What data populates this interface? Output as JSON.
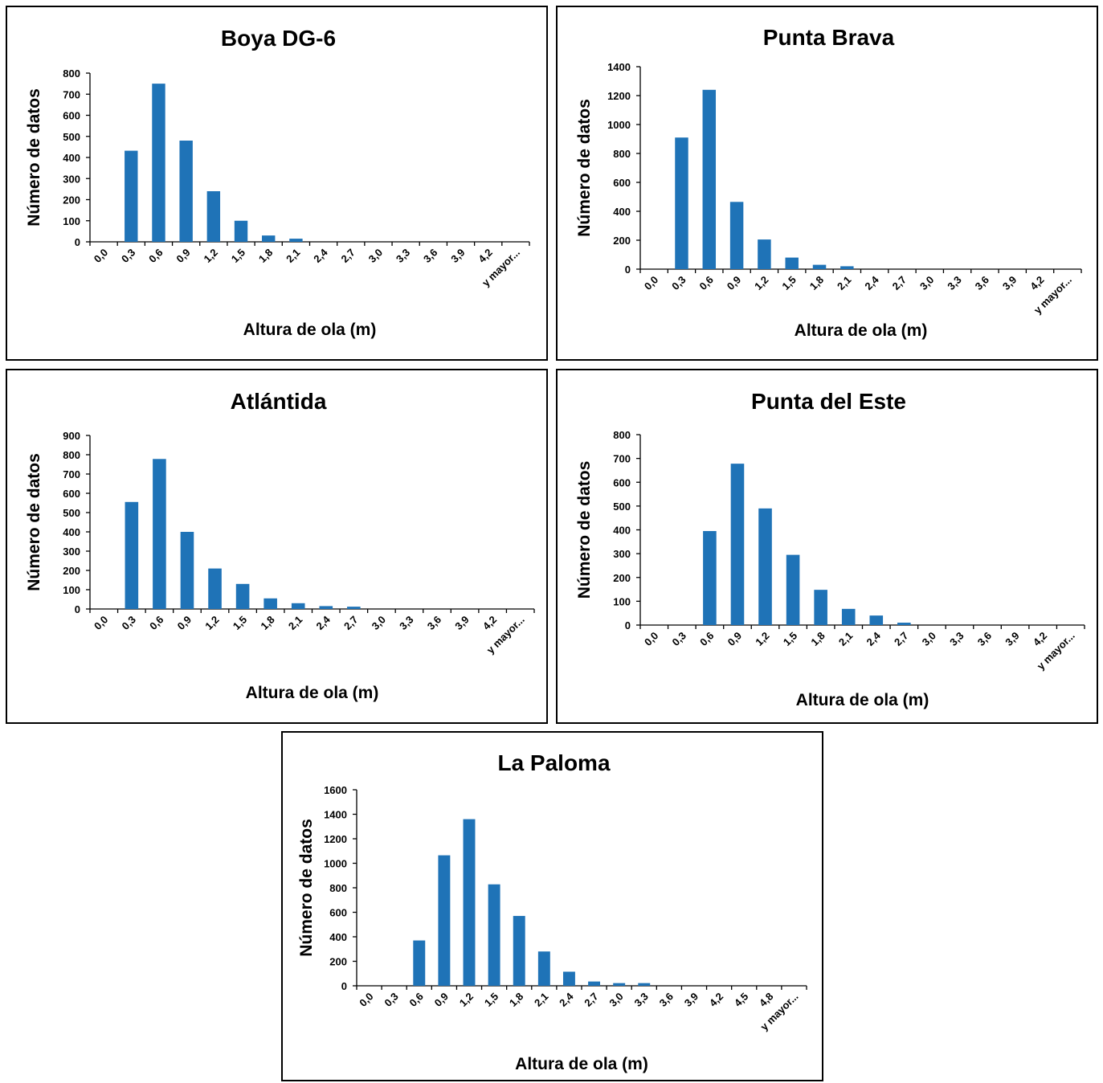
{
  "chart_data": [
    {
      "type": "bar",
      "title": "Boya DG-6",
      "xlabel": "Altura de ola (m)",
      "ylabel": "Número de datos",
      "categories": [
        "0,0",
        "0,3",
        "0,6",
        "0,9",
        "1,2",
        "1,5",
        "1,8",
        "2,1",
        "2,4",
        "2,7",
        "3,0",
        "3,3",
        "3,6",
        "3,9",
        "4,2",
        "y mayor..."
      ],
      "values": [
        0,
        432,
        750,
        480,
        240,
        100,
        30,
        15,
        0,
        0,
        0,
        0,
        0,
        0,
        0,
        0
      ],
      "ylim": [
        0,
        800
      ],
      "yticks": [
        0,
        100,
        200,
        300,
        400,
        500,
        600,
        700,
        800
      ],
      "color": "#1f73b7",
      "grid": false
    },
    {
      "type": "bar",
      "title": "Punta Brava",
      "xlabel": "Altura de ola (m)",
      "ylabel": "Número de datos",
      "categories": [
        "0,0",
        "0,3",
        "0,6",
        "0,9",
        "1,2",
        "1,5",
        "1,8",
        "2,1",
        "2,4",
        "2,7",
        "3,0",
        "3,3",
        "3,6",
        "3,9",
        "4,2",
        "y mayor..."
      ],
      "values": [
        0,
        910,
        1240,
        465,
        205,
        80,
        30,
        20,
        0,
        0,
        0,
        0,
        0,
        0,
        0,
        0
      ],
      "ylim": [
        0,
        1400
      ],
      "yticks": [
        0,
        200,
        400,
        600,
        800,
        1000,
        1200,
        1400
      ],
      "color": "#1f73b7",
      "grid": false
    },
    {
      "type": "bar",
      "title": "Atlántida",
      "xlabel": "Altura de ola (m)",
      "ylabel": "Número de datos",
      "categories": [
        "0,0",
        "0,3",
        "0,6",
        "0,9",
        "1,2",
        "1,5",
        "1,8",
        "2,1",
        "2,4",
        "2,7",
        "3,0",
        "3,3",
        "3,6",
        "3,9",
        "4,2",
        "y mayor..."
      ],
      "values": [
        0,
        555,
        778,
        400,
        210,
        130,
        55,
        30,
        15,
        12,
        0,
        0,
        0,
        0,
        0,
        0
      ],
      "ylim": [
        0,
        900
      ],
      "yticks": [
        0,
        100,
        200,
        300,
        400,
        500,
        600,
        700,
        800,
        900
      ],
      "color": "#1f73b7",
      "grid": false
    },
    {
      "type": "bar",
      "title": "Punta del Este",
      "xlabel": "Altura de ola (m)",
      "ylabel": "Número de datos",
      "categories": [
        "0,0",
        "0,3",
        "0,6",
        "0,9",
        "1,2",
        "1,5",
        "1,8",
        "2,1",
        "2,4",
        "2,7",
        "3,0",
        "3,3",
        "3,6",
        "3,9",
        "4,2",
        "y mayor..."
      ],
      "values": [
        0,
        0,
        395,
        678,
        490,
        295,
        148,
        68,
        40,
        10,
        0,
        0,
        0,
        0,
        0,
        0
      ],
      "ylim": [
        0,
        800
      ],
      "yticks": [
        0,
        100,
        200,
        300,
        400,
        500,
        600,
        700,
        800
      ],
      "color": "#1f73b7",
      "grid": false
    },
    {
      "type": "bar",
      "title": "La Paloma",
      "xlabel": "Altura de ola (m)",
      "ylabel": "Número de datos",
      "categories": [
        "0,0",
        "0,3",
        "0,6",
        "0,9",
        "1,2",
        "1,5",
        "1,8",
        "2,1",
        "2,4",
        "2,7",
        "3,0",
        "3,3",
        "3,6",
        "3,9",
        "4,2",
        "4,5",
        "4,8",
        "y mayor..."
      ],
      "values": [
        0,
        0,
        370,
        1065,
        1360,
        828,
        570,
        280,
        115,
        35,
        22,
        22,
        0,
        0,
        0,
        0,
        0,
        0
      ],
      "ylim": [
        0,
        1600
      ],
      "yticks": [
        0,
        200,
        400,
        600,
        800,
        1000,
        1200,
        1400,
        1600
      ],
      "color": "#1f73b7",
      "grid": false
    }
  ]
}
